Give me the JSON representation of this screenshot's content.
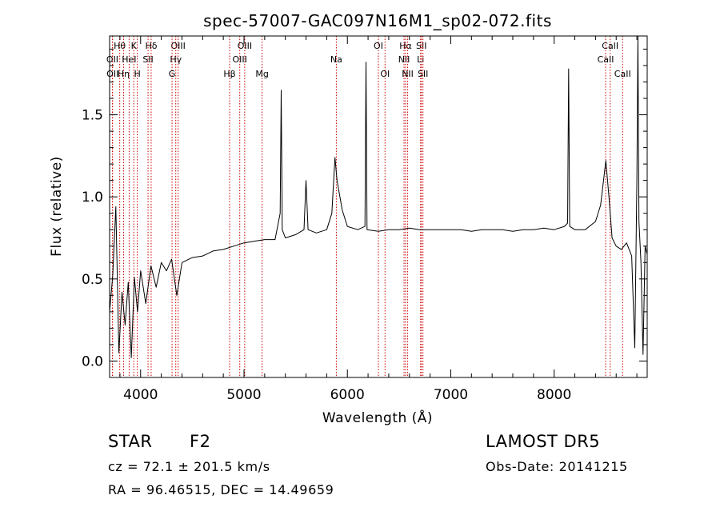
{
  "chart_data": {
    "type": "line",
    "title": "spec-57007-GAC097N16M1_sp02-072.fits",
    "xlabel": "Wavelength (Å)",
    "ylabel": "Flux (relative)",
    "xlim": [
      3700,
      8900
    ],
    "ylim": [
      -0.1,
      1.98
    ],
    "xticks": [
      {
        "value": 4000,
        "label": "4000"
      },
      {
        "value": 5000,
        "label": "5000"
      },
      {
        "value": 6000,
        "label": "6000"
      },
      {
        "value": 7000,
        "label": "7000"
      },
      {
        "value": 8000,
        "label": "8000"
      }
    ],
    "yticks": [
      {
        "value": 0.0,
        "label": "0.0"
      },
      {
        "value": 0.5,
        "label": "0.5"
      },
      {
        "value": 1.0,
        "label": "1.0"
      },
      {
        "value": 1.5,
        "label": "1.5"
      }
    ],
    "grid": false,
    "line_color": "#000000",
    "marker_color": "#cc0000",
    "spectrum_points": [
      [
        3700,
        0.3
      ],
      [
        3730,
        0.52
      ],
      [
        3760,
        0.94
      ],
      [
        3790,
        0.05
      ],
      [
        3820,
        0.42
      ],
      [
        3850,
        0.22
      ],
      [
        3880,
        0.48
      ],
      [
        3910,
        0.02
      ],
      [
        3940,
        0.51
      ],
      [
        3970,
        0.3
      ],
      [
        4000,
        0.55
      ],
      [
        4050,
        0.35
      ],
      [
        4100,
        0.58
      ],
      [
        4150,
        0.45
      ],
      [
        4200,
        0.6
      ],
      [
        4250,
        0.55
      ],
      [
        4300,
        0.62
      ],
      [
        4350,
        0.4
      ],
      [
        4400,
        0.6
      ],
      [
        4500,
        0.63
      ],
      [
        4600,
        0.64
      ],
      [
        4700,
        0.67
      ],
      [
        4800,
        0.68
      ],
      [
        4900,
        0.7
      ],
      [
        5000,
        0.72
      ],
      [
        5100,
        0.73
      ],
      [
        5200,
        0.74
      ],
      [
        5300,
        0.74
      ],
      [
        5350,
        0.9
      ],
      [
        5360,
        1.65
      ],
      [
        5370,
        0.8
      ],
      [
        5400,
        0.75
      ],
      [
        5500,
        0.77
      ],
      [
        5580,
        0.8
      ],
      [
        5600,
        1.1
      ],
      [
        5620,
        0.8
      ],
      [
        5700,
        0.78
      ],
      [
        5800,
        0.8
      ],
      [
        5850,
        0.9
      ],
      [
        5880,
        1.24
      ],
      [
        5900,
        1.1
      ],
      [
        5950,
        0.92
      ],
      [
        6000,
        0.82
      ],
      [
        6100,
        0.8
      ],
      [
        6170,
        0.82
      ],
      [
        6180,
        1.82
      ],
      [
        6190,
        0.8
      ],
      [
        6300,
        0.79
      ],
      [
        6400,
        0.8
      ],
      [
        6500,
        0.8
      ],
      [
        6600,
        0.81
      ],
      [
        6700,
        0.8
      ],
      [
        6800,
        0.8
      ],
      [
        6900,
        0.8
      ],
      [
        7000,
        0.8
      ],
      [
        7100,
        0.8
      ],
      [
        7200,
        0.79
      ],
      [
        7300,
        0.8
      ],
      [
        7400,
        0.8
      ],
      [
        7500,
        0.8
      ],
      [
        7600,
        0.79
      ],
      [
        7700,
        0.8
      ],
      [
        7800,
        0.8
      ],
      [
        7900,
        0.81
      ],
      [
        8000,
        0.8
      ],
      [
        8100,
        0.82
      ],
      [
        8130,
        0.84
      ],
      [
        8140,
        1.78
      ],
      [
        8150,
        0.82
      ],
      [
        8200,
        0.8
      ],
      [
        8300,
        0.8
      ],
      [
        8400,
        0.85
      ],
      [
        8450,
        0.95
      ],
      [
        8500,
        1.22
      ],
      [
        8530,
        1.0
      ],
      [
        8560,
        0.75
      ],
      [
        8600,
        0.7
      ],
      [
        8650,
        0.68
      ],
      [
        8700,
        0.72
      ],
      [
        8750,
        0.64
      ],
      [
        8780,
        0.08
      ],
      [
        8800,
        1.1
      ],
      [
        8810,
        1.98
      ],
      [
        8820,
        0.85
      ],
      [
        8840,
        0.6
      ],
      [
        8860,
        0.04
      ],
      [
        8880,
        0.7
      ],
      [
        8900,
        0.65
      ]
    ],
    "line_markers": [
      {
        "label": "Hθ",
        "wavelength": 3798,
        "row": 0
      },
      {
        "label": "OII",
        "wavelength": 3727,
        "row": 1
      },
      {
        "label": "OII",
        "wavelength": 3729,
        "row": 2
      },
      {
        "label": "Hη",
        "wavelength": 3835,
        "row": 2
      },
      {
        "label": "HeI",
        "wavelength": 3889,
        "row": 1
      },
      {
        "label": "K",
        "wavelength": 3934,
        "row": 0
      },
      {
        "label": "H",
        "wavelength": 3968,
        "row": 2
      },
      {
        "label": "Hδ",
        "wavelength": 4102,
        "row": 0
      },
      {
        "label": "SII",
        "wavelength": 4072,
        "row": 1
      },
      {
        "label": "OIII",
        "wavelength": 4363,
        "row": 0
      },
      {
        "label": "Hγ",
        "wavelength": 4340,
        "row": 1
      },
      {
        "label": "G",
        "wavelength": 4304,
        "row": 2
      },
      {
        "label": "Hβ",
        "wavelength": 4861,
        "row": 2
      },
      {
        "label": "OIII",
        "wavelength": 5007,
        "row": 0
      },
      {
        "label": "OIII",
        "wavelength": 4959,
        "row": 1
      },
      {
        "label": "Mg",
        "wavelength": 5175,
        "row": 2
      },
      {
        "label": "Na",
        "wavelength": 5893,
        "row": 1
      },
      {
        "label": "OI",
        "wavelength": 6300,
        "row": 0
      },
      {
        "label": "OI",
        "wavelength": 6364,
        "row": 2
      },
      {
        "label": "Hα",
        "wavelength": 6563,
        "row": 0
      },
      {
        "label": "NII",
        "wavelength": 6548,
        "row": 1
      },
      {
        "label": "NII",
        "wavelength": 6583,
        "row": 2
      },
      {
        "label": "SII",
        "wavelength": 6716,
        "row": 0
      },
      {
        "label": "Li",
        "wavelength": 6708,
        "row": 1
      },
      {
        "label": "SII",
        "wavelength": 6731,
        "row": 2
      },
      {
        "label": "CaII",
        "wavelength": 8542,
        "row": 0
      },
      {
        "label": "CaII",
        "wavelength": 8498,
        "row": 1
      },
      {
        "label": "CaII",
        "wavelength": 8662,
        "row": 2
      }
    ]
  },
  "info": {
    "class_label": "STAR",
    "subclass_label": "F2",
    "redshift_text": "cz = 72.1 ± 201.5 km/s",
    "coords_text": "RA =  96.46515, DEC =  14.49659",
    "survey_text": "LAMOST DR5",
    "obs_date_text": "Obs-Date: 20141215"
  }
}
